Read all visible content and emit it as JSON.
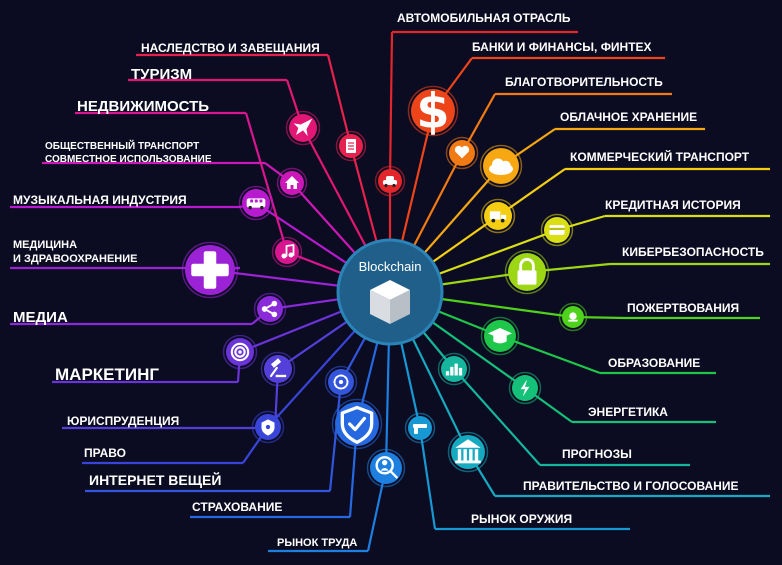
{
  "hub": {
    "title": "Blockchain"
  },
  "colors": {
    "background": "#0b0b22",
    "hub": "#1f5f8a",
    "hub_ring": "#2a84b8"
  },
  "labels": [
    "АВТОМОБИЛЬНАЯ ОТРАСЛЬ",
    "БАНКИ И ФИНАНСЫ, ФИНТЕХ",
    "БЛАГОТВОРИТЕЛЬНОСТЬ",
    "ОБЛАЧНОЕ ХРАНЕНИЕ",
    "КОММЕРЧЕСКИЙ ТРАНСПОРТ",
    "КРЕДИТНАЯ ИСТОРИЯ",
    "КИБЕРБЕЗОПАСНОСТЬ",
    "ПОЖЕРТВОВАНИЯ",
    "ОБРАЗОВАНИЕ",
    "ЭНЕРГЕТИКА",
    "ПРОГНОЗЫ",
    "ПРАВИТЕЛЬСТВО И ГОЛОСОВАНИЕ",
    "РЫНОК ОРУЖИЯ",
    "РЫНОК ТРУДА",
    "СТРАХОВАНИЕ",
    "ИНТЕРНЕТ ВЕЩЕЙ",
    "ПРАВО",
    "ЮРИСПРУДЕНЦИЯ",
    "МАРКЕТИНГ",
    "МЕДИА",
    "МЕДИЦИНА",
    "И ЗДРАВООХРАНЕНИЕ",
    "МУЗЫКАЛЬНАЯ ИНДУСТРИЯ",
    "ОБЩЕСТВЕННЫЙ ТРАНСПОРТ",
    "СОВМЕСТНОЕ ИСПОЛЬЗОВАНИЕ",
    "НЕДВИЖИМОСТЬ",
    "ТУРИЗМ",
    "НАСЛЕДСТВО И ЗАВЕЩАНИЯ"
  ]
}
